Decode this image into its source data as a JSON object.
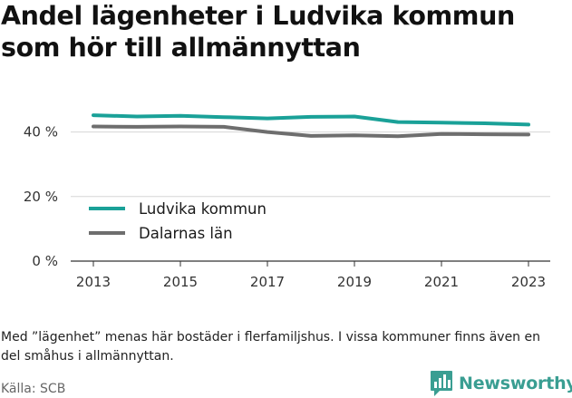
{
  "title": "Andel lägenheter i Ludvika kommun som hör till allmännyttan",
  "note": "Med ”lägenhet” menas här bostäder i flerfamiljshus. I vissa kommuner finns även en del småhus i allmännyttan.",
  "source": "Källa: SCB",
  "brand": "Newsworthy",
  "chart_data": {
    "type": "line",
    "x": [
      2013,
      2014,
      2015,
      2016,
      2017,
      2018,
      2019,
      2020,
      2021,
      2022,
      2023
    ],
    "series": [
      {
        "name": "Ludvika kommun",
        "color": "#1aa198",
        "values": [
          45.2,
          44.8,
          45.0,
          44.6,
          44.2,
          44.7,
          44.8,
          43.1,
          42.9,
          42.7,
          42.3
        ]
      },
      {
        "name": "Dalarnas län",
        "color": "#6e6e6e",
        "values": [
          41.7,
          41.6,
          41.7,
          41.6,
          40.0,
          38.8,
          39.0,
          38.7,
          39.4,
          39.3,
          39.2
        ]
      }
    ],
    "ylim": [
      0,
      50
    ],
    "yticks": [
      {
        "value": 0,
        "label": "0 %"
      },
      {
        "value": 20,
        "label": "20 %"
      },
      {
        "value": 40,
        "label": "40 %"
      }
    ],
    "xticks": [
      2013,
      2015,
      2017,
      2019,
      2021,
      2023
    ],
    "legend_position": "lower-left",
    "grid": "horizontal"
  }
}
